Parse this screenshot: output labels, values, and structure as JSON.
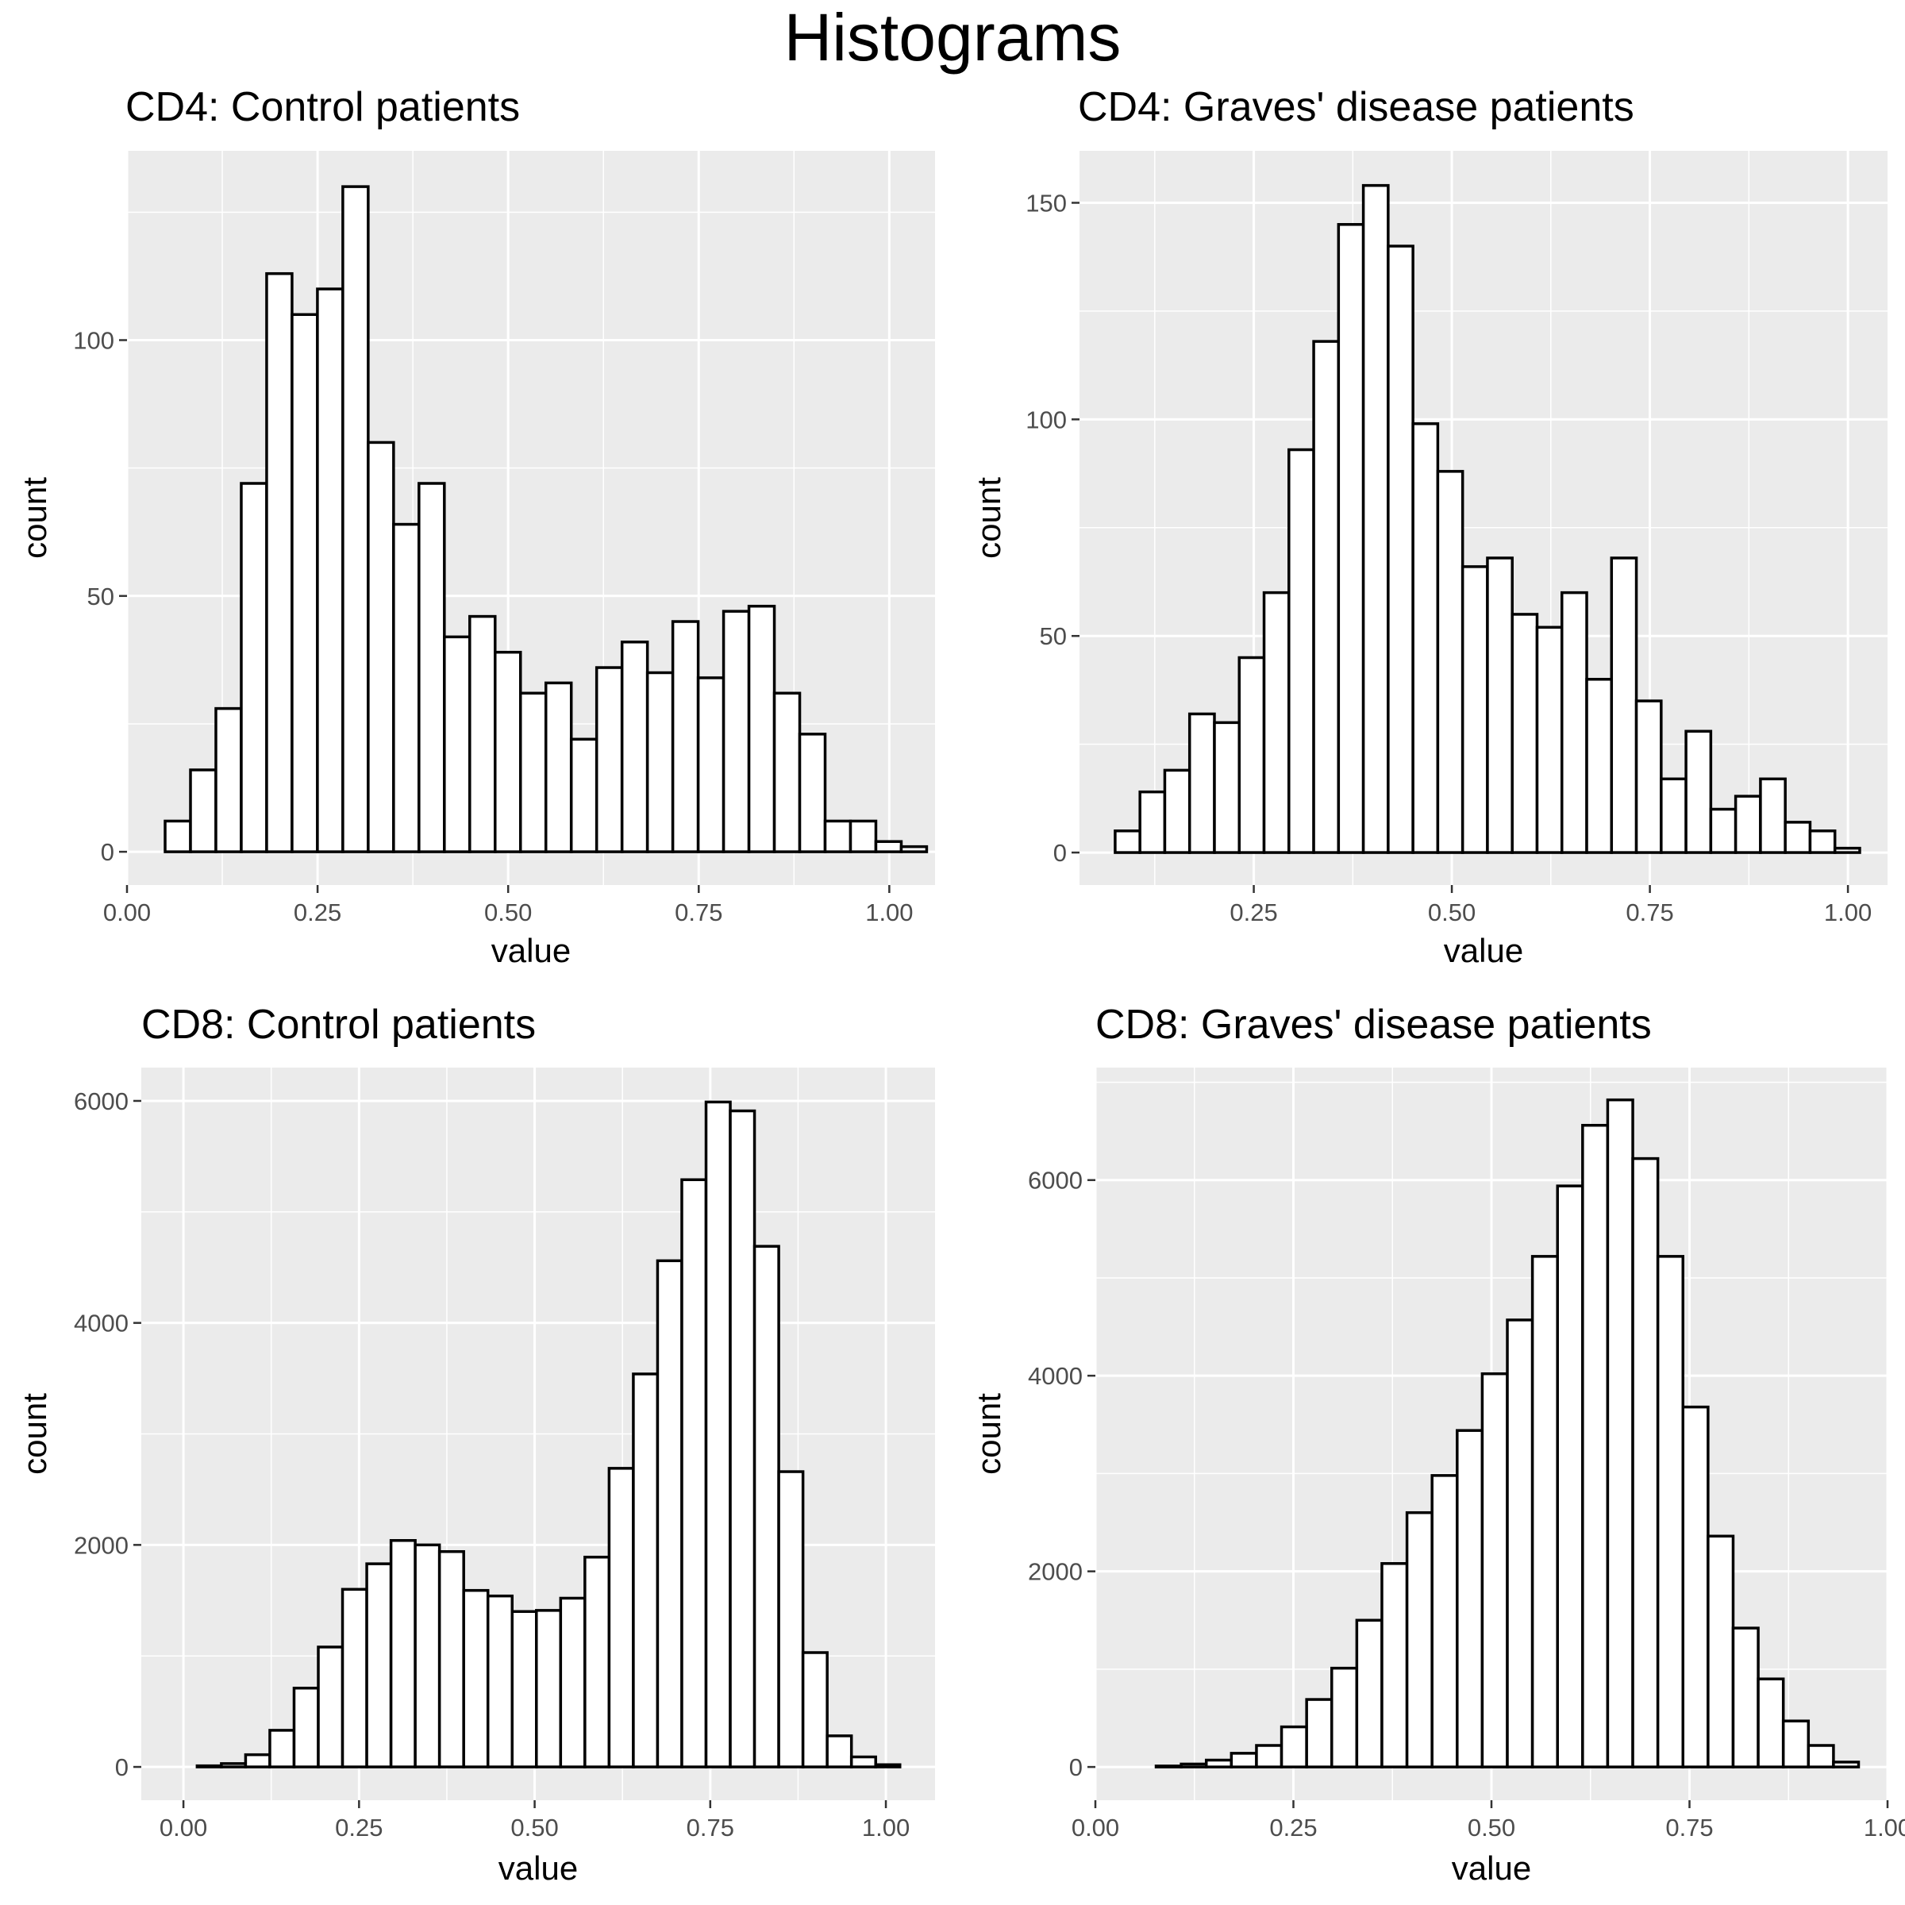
{
  "title": "Histograms",
  "colors": {
    "panel_background": "#ebebeb",
    "bar_fill": "#ffffff",
    "bar_outline": "#000000",
    "tick_text": "#4d4d4d"
  },
  "chart_data": [
    {
      "type": "bar",
      "subtype": "histogram",
      "title": "CD4: Control patients",
      "xlabel": "value",
      "ylabel": "count",
      "xlim": [
        0.0,
        1.06
      ],
      "ylim": [
        -6.5,
        137
      ],
      "xticks": [
        0.0,
        0.25,
        0.5,
        0.75,
        1.0
      ],
      "xtick_labels": [
        "0.00",
        "0.25",
        "0.50",
        "0.75",
        "1.00"
      ],
      "yticks": [
        0,
        50,
        100
      ],
      "ytick_labels": [
        "0",
        "50",
        "100"
      ],
      "grid": true,
      "bin_start": 0.05,
      "bin_width": 0.0333,
      "values": [
        6,
        16,
        28,
        72,
        113,
        105,
        110,
        130,
        80,
        64,
        72,
        42,
        46,
        39,
        31,
        33,
        22,
        36,
        41,
        35,
        45,
        34,
        47,
        48,
        31,
        23,
        6,
        6,
        2,
        1
      ]
    },
    {
      "type": "bar",
      "subtype": "histogram",
      "title": "CD4: Graves' disease patients",
      "xlabel": "value",
      "ylabel": "count",
      "xlim": [
        0.03,
        1.05
      ],
      "ylim": [
        -7.5,
        162
      ],
      "xticks": [
        0.25,
        0.5,
        0.75,
        1.0
      ],
      "xtick_labels": [
        "0.25",
        "0.50",
        "0.75",
        "1.00"
      ],
      "yticks": [
        0,
        50,
        100,
        150
      ],
      "ytick_labels": [
        "0",
        "50",
        "100",
        "150"
      ],
      "grid": true,
      "bin_start": 0.075,
      "bin_width": 0.03133,
      "values": [
        5,
        14,
        19,
        32,
        30,
        45,
        60,
        93,
        118,
        145,
        154,
        140,
        99,
        88,
        66,
        68,
        55,
        52,
        60,
        40,
        68,
        35,
        17,
        28,
        10,
        13,
        17,
        7,
        5,
        1
      ]
    },
    {
      "type": "bar",
      "subtype": "histogram",
      "title": "CD8: Control patients",
      "xlabel": "value",
      "ylabel": "count",
      "xlim": [
        -0.06,
        1.07
      ],
      "ylim": [
        -300,
        6300
      ],
      "xticks": [
        0.0,
        0.25,
        0.5,
        0.75,
        1.0
      ],
      "xtick_labels": [
        "0.00",
        "0.25",
        "0.50",
        "0.75",
        "1.00"
      ],
      "yticks": [
        0,
        2000,
        4000,
        6000
      ],
      "ytick_labels": [
        "0",
        "2000",
        "4000",
        "6000"
      ],
      "grid": true,
      "bin_start": -0.015,
      "bin_width": 0.0345,
      "values": [
        0,
        10,
        30,
        110,
        330,
        710,
        1080,
        1600,
        1830,
        2040,
        2000,
        1940,
        1590,
        1540,
        1400,
        1410,
        1520,
        1890,
        2690,
        3540,
        4560,
        5290,
        5990,
        5910,
        4690,
        2660,
        1030,
        280,
        90,
        20
      ]
    },
    {
      "type": "bar",
      "subtype": "histogram",
      "title": "CD8: Graves' disease patients",
      "xlabel": "value",
      "ylabel": "count",
      "xlim": [
        0.0,
        1.0
      ],
      "ylim": [
        -340,
        7150
      ],
      "xticks": [
        0.0,
        0.25,
        0.5,
        0.75,
        1.0
      ],
      "xtick_labels": [
        "0.00",
        "0.25",
        "0.50",
        "0.75",
        "1.00"
      ],
      "yticks": [
        0,
        2000,
        4000,
        6000
      ],
      "ytick_labels": [
        "0",
        "2000",
        "4000",
        "6000"
      ],
      "grid": true,
      "bin_start": 0.045,
      "bin_width": 0.03167,
      "values": [
        0,
        10,
        30,
        70,
        140,
        220,
        410,
        690,
        1010,
        1500,
        2080,
        2600,
        2980,
        3440,
        4020,
        4570,
        5220,
        5940,
        6560,
        6820,
        6220,
        5220,
        3680,
        2360,
        1420,
        900,
        470,
        220,
        50,
        0
      ]
    }
  ]
}
